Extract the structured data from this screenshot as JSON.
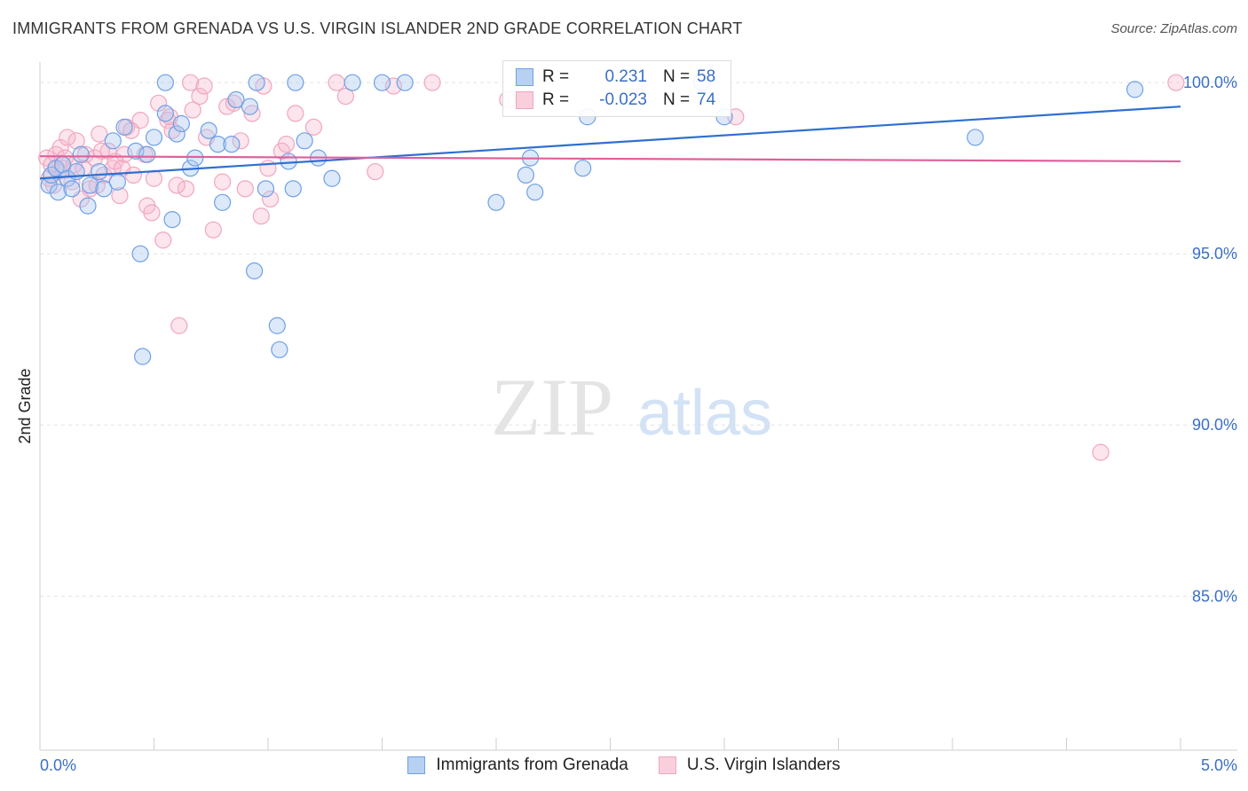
{
  "title": "IMMIGRANTS FROM GRENADA VS U.S. VIRGIN ISLANDER 2ND GRADE CORRELATION CHART",
  "source": "Source: ZipAtlas.com",
  "watermark": {
    "zip": "ZIP",
    "atlas": "atlas"
  },
  "colors": {
    "blue": "#6ea0e6",
    "blue_fill": "#b8d1f3",
    "blue_line": "#2f6fd1",
    "pink": "#f0a6bf",
    "pink_fill": "#f9cfdc",
    "pink_line": "#e0609a",
    "axis_text": "#3a6fc7",
    "grid": "#e3e3e3"
  },
  "legend": {
    "rows": [
      {
        "r_label": "R =",
        "r_value": "0.231",
        "n_label": "N =",
        "n_value": "58"
      },
      {
        "r_label": "R =",
        "r_value": "-0.023",
        "n_label": "N =",
        "n_value": "74"
      }
    ]
  },
  "bottom_legend": {
    "series1": "Immigrants from Grenada",
    "series2": "U.S. Virgin Islanders"
  },
  "chart_data": {
    "type": "scatter",
    "title": "IMMIGRANTS FROM GRENADA VS U.S. VIRGIN ISLANDER 2ND GRADE CORRELATION CHART",
    "xlabel": "",
    "ylabel": "2nd Grade",
    "xlim": [
      0,
      5
    ],
    "ylim": [
      80.5,
      100.6
    ],
    "x_tick_labels": [
      "0.0%",
      "5.0%"
    ],
    "y_ticks": [
      {
        "value": 100,
        "label": "100.0%"
      },
      {
        "value": 95,
        "label": "95.0%"
      },
      {
        "value": 90,
        "label": "90.0%"
      },
      {
        "value": 85,
        "label": "85.0%"
      }
    ],
    "series": [
      {
        "name": "Immigrants from Grenada",
        "color": "#6ea0e6",
        "trend": {
          "x0": 0.0,
          "y0": 97.2,
          "x1": 5.0,
          "y1": 99.3
        },
        "points": [
          [
            0.04,
            97.0
          ],
          [
            0.05,
            97.3
          ],
          [
            0.07,
            97.5
          ],
          [
            0.08,
            96.8
          ],
          [
            0.1,
            97.6
          ],
          [
            0.12,
            97.2
          ],
          [
            0.14,
            96.9
          ],
          [
            0.16,
            97.4
          ],
          [
            0.18,
            97.9
          ],
          [
            0.21,
            96.4
          ],
          [
            0.22,
            97.0
          ],
          [
            0.26,
            97.4
          ],
          [
            0.28,
            96.9
          ],
          [
            0.32,
            98.3
          ],
          [
            0.34,
            97.1
          ],
          [
            0.37,
            98.7
          ],
          [
            0.42,
            98.0
          ],
          [
            0.44,
            95.0
          ],
          [
            0.47,
            97.9
          ],
          [
            0.5,
            98.4
          ],
          [
            0.55,
            99.1
          ],
          [
            0.58,
            96.0
          ],
          [
            0.6,
            98.5
          ],
          [
            0.62,
            98.8
          ],
          [
            0.66,
            97.5
          ],
          [
            0.68,
            97.8
          ],
          [
            0.74,
            98.6
          ],
          [
            0.78,
            98.2
          ],
          [
            0.8,
            96.5
          ],
          [
            0.84,
            98.2
          ],
          [
            0.86,
            99.5
          ],
          [
            0.92,
            99.3
          ],
          [
            0.94,
            94.5
          ],
          [
            0.99,
            96.9
          ],
          [
            1.04,
            92.9
          ],
          [
            1.05,
            92.2
          ],
          [
            1.09,
            97.7
          ],
          [
            1.11,
            96.9
          ],
          [
            1.16,
            98.3
          ],
          [
            1.22,
            97.8
          ],
          [
            1.28,
            97.2
          ],
          [
            1.37,
            100.0
          ],
          [
            1.5,
            100.0
          ],
          [
            1.6,
            100.0
          ],
          [
            2.0,
            96.5
          ],
          [
            2.13,
            97.3
          ],
          [
            2.15,
            97.8
          ],
          [
            2.17,
            96.8
          ],
          [
            2.38,
            97.5
          ],
          [
            2.4,
            99.0
          ],
          [
            2.9,
            100.0
          ],
          [
            3.0,
            99.0
          ],
          [
            4.1,
            98.4
          ],
          [
            4.8,
            99.8
          ],
          [
            0.45,
            92.0
          ],
          [
            0.55,
            100.0
          ],
          [
            0.95,
            100.0
          ],
          [
            1.12,
            100.0
          ]
        ]
      },
      {
        "name": "U.S. Virgin Islanders",
        "color": "#f0a6bf",
        "trend": {
          "x0": 0.0,
          "y0": 97.85,
          "x1": 5.0,
          "y1": 97.7
        },
        "points": [
          [
            0.03,
            97.8
          ],
          [
            0.04,
            97.2
          ],
          [
            0.05,
            97.6
          ],
          [
            0.06,
            97.0
          ],
          [
            0.07,
            97.9
          ],
          [
            0.08,
            97.4
          ],
          [
            0.09,
            98.1
          ],
          [
            0.11,
            97.8
          ],
          [
            0.12,
            98.4
          ],
          [
            0.14,
            97.1
          ],
          [
            0.16,
            98.3
          ],
          [
            0.18,
            96.6
          ],
          [
            0.2,
            97.9
          ],
          [
            0.22,
            96.9
          ],
          [
            0.24,
            97.8
          ],
          [
            0.26,
            98.5
          ],
          [
            0.28,
            97.3
          ],
          [
            0.3,
            98.0
          ],
          [
            0.32,
            97.5
          ],
          [
            0.35,
            96.7
          ],
          [
            0.37,
            97.9
          ],
          [
            0.38,
            98.7
          ],
          [
            0.41,
            97.3
          ],
          [
            0.44,
            98.9
          ],
          [
            0.47,
            96.4
          ],
          [
            0.49,
            96.2
          ],
          [
            0.52,
            99.4
          ],
          [
            0.54,
            95.4
          ],
          [
            0.56,
            98.9
          ],
          [
            0.58,
            98.6
          ],
          [
            0.61,
            92.9
          ],
          [
            0.64,
            96.9
          ],
          [
            0.67,
            99.2
          ],
          [
            0.7,
            99.6
          ],
          [
            0.73,
            98.4
          ],
          [
            0.76,
            95.7
          ],
          [
            0.8,
            97.1
          ],
          [
            0.82,
            99.3
          ],
          [
            0.85,
            99.4
          ],
          [
            0.9,
            96.9
          ],
          [
            0.93,
            99.1
          ],
          [
            0.97,
            96.1
          ],
          [
            1.01,
            96.6
          ],
          [
            1.06,
            98.0
          ],
          [
            1.12,
            99.1
          ],
          [
            1.2,
            98.7
          ],
          [
            1.34,
            99.6
          ],
          [
            1.47,
            97.4
          ],
          [
            1.72,
            100.0
          ],
          [
            2.05,
            99.5
          ],
          [
            2.62,
            99.6
          ],
          [
            3.05,
            99.0
          ],
          [
            4.65,
            89.2
          ],
          [
            4.98,
            100.0
          ],
          [
            0.15,
            97.6
          ],
          [
            0.25,
            97.0
          ],
          [
            0.33,
            97.7
          ],
          [
            0.4,
            98.6
          ],
          [
            0.5,
            97.2
          ],
          [
            0.6,
            97.0
          ],
          [
            0.66,
            100.0
          ],
          [
            0.88,
            98.3
          ],
          [
            0.98,
            99.9
          ],
          [
            1.08,
            98.2
          ],
          [
            1.3,
            100.0
          ],
          [
            1.55,
            99.9
          ],
          [
            0.1,
            97.5
          ],
          [
            0.19,
            97.5
          ],
          [
            0.27,
            98.0
          ],
          [
            0.36,
            97.5
          ],
          [
            0.46,
            97.9
          ],
          [
            0.57,
            99.0
          ],
          [
            0.72,
            99.9
          ],
          [
            1.0,
            97.5
          ]
        ]
      }
    ]
  }
}
